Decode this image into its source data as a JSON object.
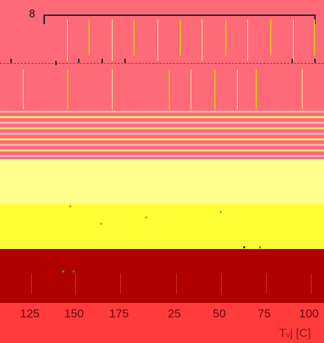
{
  "top": {
    "bracket_label": "8"
  },
  "axis": {
    "ticks": [
      "125",
      "150",
      "175",
      "25",
      "50",
      "75",
      "100"
    ],
    "unit": "Tᵥj [C]"
  },
  "colors": {
    "top": "#ff6a78",
    "light_yellow": "#ffff8a",
    "yellow": "#ffff38",
    "dark_red": "#b00000",
    "bottom_red": "#ff3b3b"
  }
}
